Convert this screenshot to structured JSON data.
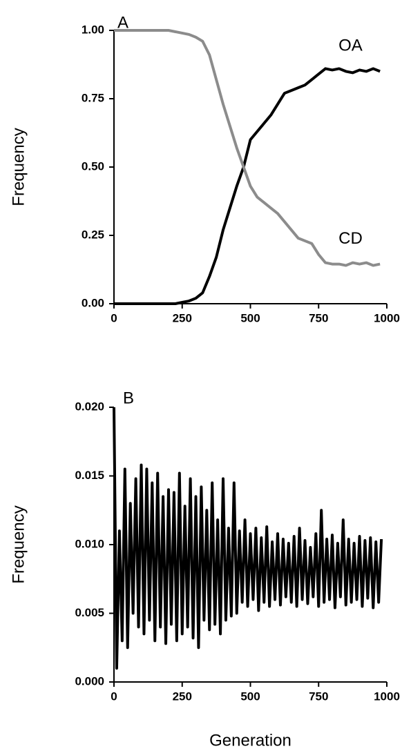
{
  "chart_data": [
    {
      "type": "line",
      "panel_label": "A",
      "ylabel": "Frequency",
      "x": [
        0,
        25,
        50,
        75,
        100,
        125,
        150,
        175,
        200,
        225,
        250,
        275,
        300,
        325,
        350,
        375,
        400,
        425,
        450,
        475,
        500,
        525,
        550,
        575,
        600,
        625,
        650,
        675,
        700,
        725,
        750,
        775,
        800,
        825,
        850,
        875,
        900,
        925,
        950,
        975
      ],
      "series": [
        {
          "name": "OA",
          "color": "#000000",
          "values": [
            0,
            0,
            0,
            0,
            0,
            0,
            0,
            0,
            0,
            0,
            0.005,
            0.01,
            0.02,
            0.04,
            0.1,
            0.17,
            0.27,
            0.35,
            0.43,
            0.5,
            0.6,
            0.63,
            0.66,
            0.69,
            0.73,
            0.77,
            0.78,
            0.79,
            0.8,
            0.82,
            0.84,
            0.86,
            0.855,
            0.86,
            0.85,
            0.845,
            0.855,
            0.85,
            0.86,
            0.85
          ]
        },
        {
          "name": "CD",
          "color": "#8c8c8c",
          "values": [
            1,
            1,
            1,
            1,
            1,
            1,
            1,
            1,
            1,
            0.995,
            0.99,
            0.985,
            0.975,
            0.96,
            0.91,
            0.82,
            0.73,
            0.65,
            0.57,
            0.5,
            0.43,
            0.39,
            0.37,
            0.35,
            0.33,
            0.3,
            0.27,
            0.24,
            0.23,
            0.22,
            0.18,
            0.15,
            0.145,
            0.145,
            0.14,
            0.15,
            0.145,
            0.15,
            0.14,
            0.145
          ]
        }
      ],
      "xlim": [
        0,
        1000
      ],
      "xticks": [
        0,
        250,
        500,
        750,
        1000
      ],
      "ylim": [
        0,
        1
      ],
      "yticks": [
        {
          "value": 0,
          "label": "0.00"
        },
        0.25,
        {
          "value": 0.5,
          "label": "0.50"
        },
        0.75,
        {
          "value": 1,
          "label": "1.00"
        }
      ]
    },
    {
      "type": "line",
      "panel_label": "B",
      "ylabel": "Frequency",
      "xlabel": "Generation",
      "x": [
        0,
        10,
        20,
        30,
        40,
        50,
        60,
        70,
        80,
        90,
        100,
        110,
        120,
        130,
        140,
        150,
        160,
        170,
        180,
        190,
        200,
        210,
        220,
        230,
        240,
        250,
        260,
        270,
        280,
        290,
        300,
        310,
        320,
        330,
        340,
        350,
        360,
        370,
        380,
        390,
        400,
        410,
        420,
        430,
        440,
        450,
        460,
        470,
        480,
        490,
        500,
        510,
        520,
        530,
        540,
        550,
        560,
        570,
        580,
        590,
        600,
        610,
        620,
        630,
        640,
        650,
        660,
        670,
        680,
        690,
        700,
        710,
        720,
        730,
        740,
        750,
        760,
        770,
        780,
        790,
        800,
        810,
        820,
        830,
        840,
        850,
        860,
        870,
        880,
        890,
        900,
        910,
        920,
        930,
        940,
        950,
        960,
        970,
        980
      ],
      "series": [
        {
          "color": "#000000",
          "values": [
            0.02,
            0.001,
            0.011,
            0.003,
            0.0155,
            0.0025,
            0.013,
            0.005,
            0.0148,
            0.004,
            0.0158,
            0.0035,
            0.0155,
            0.0045,
            0.0145,
            0.003,
            0.0152,
            0.004,
            0.0135,
            0.0028,
            0.014,
            0.0042,
            0.0138,
            0.003,
            0.0152,
            0.0035,
            0.0128,
            0.004,
            0.0148,
            0.0032,
            0.0135,
            0.0025,
            0.0142,
            0.0045,
            0.0125,
            0.0038,
            0.0145,
            0.0042,
            0.0118,
            0.0035,
            0.0148,
            0.0045,
            0.0112,
            0.0048,
            0.0145,
            0.005,
            0.011,
            0.0058,
            0.0118,
            0.0055,
            0.0108,
            0.006,
            0.0112,
            0.0052,
            0.0105,
            0.0058,
            0.0113,
            0.0055,
            0.0102,
            0.006,
            0.0108,
            0.0056,
            0.0104,
            0.0062,
            0.0101,
            0.0058,
            0.0106,
            0.0055,
            0.0112,
            0.006,
            0.0103,
            0.0057,
            0.0098,
            0.0062,
            0.0108,
            0.0055,
            0.0125,
            0.0058,
            0.0104,
            0.006,
            0.0107,
            0.0054,
            0.0101,
            0.0062,
            0.0118,
            0.0056,
            0.0104,
            0.0058,
            0.0101,
            0.006,
            0.0106,
            0.0055,
            0.0103,
            0.0061,
            0.0105,
            0.0054,
            0.0102,
            0.0058,
            0.0104
          ]
        }
      ],
      "xlim": [
        0,
        1000
      ],
      "xticks": [
        0,
        250,
        500,
        750,
        1000
      ],
      "ylim": [
        0,
        0.02
      ],
      "yticks": [
        {
          "value": 0,
          "label": "0.000"
        },
        0.005,
        {
          "value": 0.01,
          "label": "0.010"
        },
        0.015,
        {
          "value": 0.02,
          "label": "0.020"
        }
      ]
    }
  ]
}
